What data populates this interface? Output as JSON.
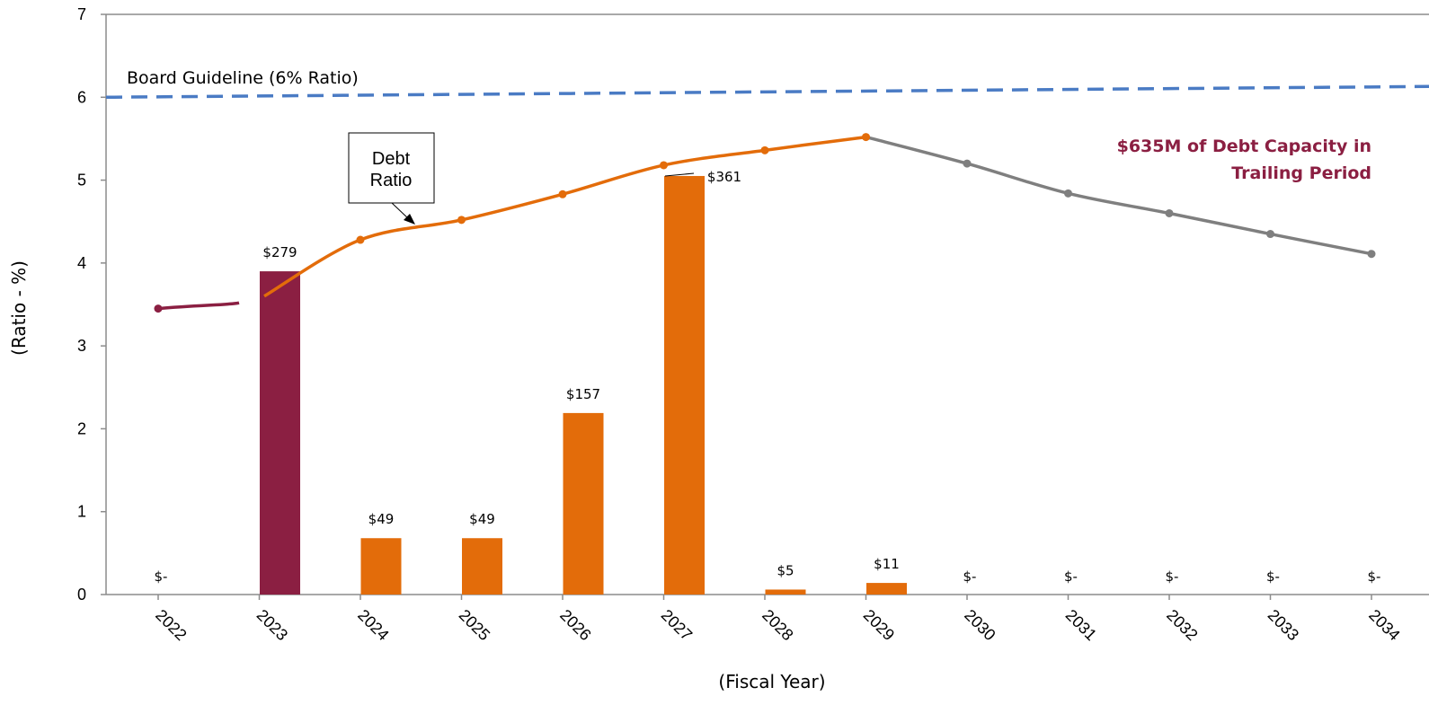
{
  "chart_data": {
    "type": "bar",
    "xlabel": "(Fiscal Year)",
    "ylabel": "(Ratio - %)",
    "ylim": [
      0,
      7
    ],
    "yticks": [
      "0",
      "1",
      "2",
      "3",
      "4",
      "5",
      "6",
      "7"
    ],
    "categories": [
      "2022",
      "2023",
      "2024",
      "2025",
      "2026",
      "2027",
      "2028",
      "2029",
      "2030",
      "2031",
      "2032",
      "2033",
      "2034"
    ],
    "bars": {
      "ratio_heights": [
        0,
        3.9,
        0.68,
        0.68,
        2.19,
        5.05,
        0.06,
        0.14,
        0,
        0,
        0,
        0,
        0
      ],
      "labels": [
        "$-",
        "$279",
        "$49",
        "$49",
        "$157",
        "$361",
        "$5",
        "$11",
        "$-",
        "$-",
        "$-",
        "$-",
        "$-"
      ],
      "colors": [
        "#8B1F42",
        "#8B1F42",
        "#E36C0A",
        "#E36C0A",
        "#E36C0A",
        "#E36C0A",
        "#E36C0A",
        "#E36C0A",
        "#E36C0A",
        "#E36C0A",
        "#E36C0A",
        "#E36C0A",
        "#E36C0A"
      ]
    },
    "series": [
      {
        "name": "Debt Ratio",
        "type": "line",
        "values": [
          3.45,
          3.6,
          4.28,
          4.52,
          4.83,
          5.18,
          5.36,
          5.52,
          5.2,
          4.84,
          4.6,
          4.35,
          4.11
        ]
      }
    ],
    "line_segment_colors": {
      "actual": "#8B1F42",
      "projected": "#E36C0A",
      "trailing": "#7F7F7F"
    },
    "guideline": {
      "label": "Board Guideline (6% Ratio)",
      "start": 6.0,
      "end": 6.13,
      "color": "#4A7BC4"
    },
    "callout": {
      "line1": "Debt",
      "line2": "Ratio"
    },
    "capacity_note": {
      "line1": "$635M of  Debt Capacity in",
      "line2": "Trailing Period",
      "color": "#8B1F42"
    },
    "grid": false
  }
}
